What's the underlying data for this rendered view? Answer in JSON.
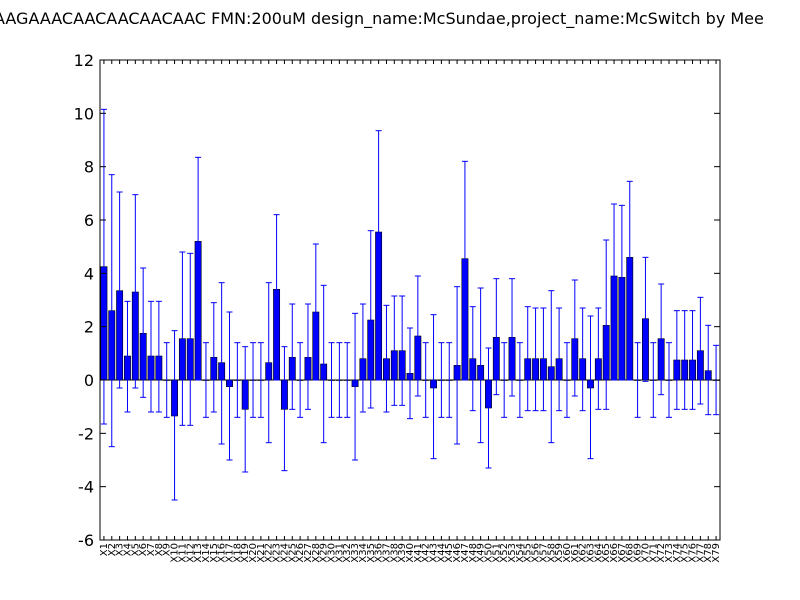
{
  "title": "AAGAAACAACAACAACAAC  FMN:200uM  design_name:McSundae,project_name:McSwitch by Mee",
  "colors": {
    "bar": "#0000ff",
    "error": "#0000ff",
    "axis": "#000000",
    "background": "#ffffff"
  },
  "chart_data": {
    "type": "bar",
    "title": "AAGAAACAACAACAACAAC  FMN:200uM  design_name:McSundae,project_name:McSwitch by Mee",
    "xlabel": "",
    "ylabel": "",
    "ylim": [
      -6,
      12
    ],
    "yticks": [
      -6,
      -4,
      -2,
      0,
      2,
      4,
      6,
      8,
      10,
      12
    ],
    "grid": false,
    "legend": "none",
    "categories": [
      "X1",
      "X2",
      "X3",
      "X4",
      "X5",
      "X6",
      "X7",
      "X8",
      "X9",
      "X10",
      "X11",
      "X12",
      "X13",
      "X14",
      "X15",
      "X16",
      "X17",
      "X18",
      "X19",
      "X20",
      "X21",
      "X22",
      "X23",
      "X24",
      "X25",
      "X26",
      "X27",
      "X28",
      "X29",
      "X30",
      "X31",
      "X32",
      "X33",
      "X34",
      "X35",
      "X36",
      "X37",
      "X38",
      "X39",
      "X40",
      "X41",
      "X42",
      "X43",
      "X44",
      "X45",
      "X46",
      "X47",
      "X48",
      "X49",
      "X50",
      "X51",
      "X52",
      "X53",
      "X54",
      "X55",
      "X56",
      "X57",
      "X58",
      "X59",
      "X60",
      "X61",
      "X62",
      "X63",
      "X64",
      "X65",
      "X66",
      "X67",
      "X68",
      "X69",
      "X70",
      "X71",
      "X72",
      "X73",
      "X74",
      "X75",
      "X76",
      "X77",
      "X78",
      "X79"
    ],
    "values": [
      4.25,
      2.6,
      3.35,
      0.9,
      3.3,
      1.75,
      0.9,
      0.9,
      0,
      -1.35,
      1.55,
      1.55,
      5.2,
      0,
      0.85,
      0.65,
      -0.25,
      0,
      -1.1,
      0,
      0,
      0.65,
      3.4,
      -1.1,
      0.85,
      0,
      0.85,
      2.55,
      0.6,
      0,
      0,
      0,
      -0.25,
      0.8,
      2.25,
      5.55,
      0.8,
      1.1,
      1.1,
      0.25,
      1.65,
      0,
      -0.3,
      0,
      0,
      0.55,
      4.55,
      0.8,
      0.55,
      -1.05,
      1.6,
      0,
      1.6,
      0,
      0.8,
      0.8,
      0.8,
      0.5,
      0.8,
      0,
      1.55,
      0.8,
      -0.3,
      0.8,
      2.05,
      3.9,
      3.85,
      4.6,
      0,
      2.3,
      0,
      1.55,
      0,
      0.75,
      0.75,
      0.75,
      1.1,
      0.35,
      0
    ],
    "error_upper": [
      10.15,
      7.7,
      7.05,
      2.95,
      6.95,
      4.2,
      2.95,
      2.95,
      1.4,
      1.85,
      4.8,
      4.75,
      8.35,
      1.4,
      2.9,
      3.65,
      2.55,
      1.4,
      1.25,
      1.4,
      1.4,
      3.65,
      6.2,
      1.25,
      2.85,
      1.4,
      2.85,
      5.1,
      3.55,
      1.4,
      1.4,
      1.4,
      2.5,
      2.85,
      5.6,
      9.35,
      2.8,
      3.15,
      3.15,
      1.95,
      3.9,
      1.4,
      2.45,
      1.4,
      1.4,
      3.5,
      8.2,
      2.75,
      3.45,
      1.2,
      3.8,
      1.4,
      3.8,
      1.4,
      2.75,
      2.7,
      2.7,
      3.35,
      2.7,
      1.4,
      3.75,
      2.7,
      2.4,
      2.7,
      5.25,
      6.6,
      6.55,
      7.45,
      1.4,
      4.6,
      1.4,
      3.6,
      1.4,
      2.6,
      2.6,
      2.6,
      3.1,
      2.05,
      1.3
    ],
    "error_lower": [
      -1.65,
      -2.5,
      -0.3,
      -1.2,
      -0.3,
      -0.65,
      -1.2,
      -1.2,
      -1.4,
      -4.5,
      -1.7,
      -1.7,
      0,
      -1.4,
      -1.2,
      -2.4,
      -3,
      -1.4,
      -3.45,
      -1.4,
      -1.4,
      -2.35,
      0,
      -3.4,
      -1.1,
      -1.4,
      -1.1,
      0,
      -2.35,
      -1.4,
      -1.4,
      -1.4,
      -3,
      -1.2,
      -1.05,
      0,
      -1.2,
      -0.95,
      -0.95,
      -1.45,
      -0.6,
      -1.4,
      -2.95,
      -1.4,
      -1.4,
      -2.4,
      0,
      -1.15,
      -2.35,
      -3.3,
      -0.55,
      -1.4,
      -0.6,
      -1.4,
      -1.15,
      -1.15,
      -1.15,
      -2.35,
      -1.15,
      -1.4,
      -0.6,
      -1.15,
      -2.95,
      -1.1,
      -1.1,
      0,
      0,
      0,
      -1.4,
      -0.05,
      -1.4,
      -0.55,
      -1.4,
      -1.1,
      -1.1,
      -1.1,
      -0.9,
      -1.3,
      -1.3
    ]
  }
}
